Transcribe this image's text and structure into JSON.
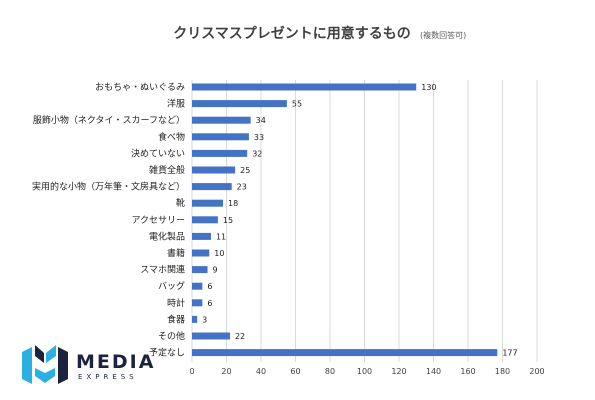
{
  "chart_data": {
    "type": "bar",
    "orientation": "horizontal",
    "title": "クリスマスプレゼントに用意するもの",
    "title_note": "(複数回答可)",
    "categories": [
      "おもちゃ・ぬいぐるみ",
      "洋服",
      "服飾小物（ネクタイ・スカーフなど）",
      "食べ物",
      "決めていない",
      "雑貨全般",
      "実用的な小物（万年筆・文房具など）",
      "靴",
      "アクセサリー",
      "電化製品",
      "書籍",
      "スマホ関連",
      "バッグ",
      "時計",
      "食器",
      "その他",
      "予定なし"
    ],
    "values": [
      130,
      55,
      34,
      33,
      32,
      25,
      23,
      18,
      15,
      11,
      10,
      9,
      6,
      6,
      3,
      22,
      177
    ],
    "xlim": [
      0,
      200
    ],
    "xticks": [
      "0",
      "20",
      "40",
      "60",
      "80",
      "100",
      "120",
      "140",
      "160",
      "180",
      "200"
    ],
    "grid": "vertical",
    "bar_color": "#4472c4"
  },
  "logo": {
    "main": "MEDIA",
    "sub": "EXPRESS",
    "colors": [
      "#2ab0e3",
      "#1b2340"
    ]
  }
}
